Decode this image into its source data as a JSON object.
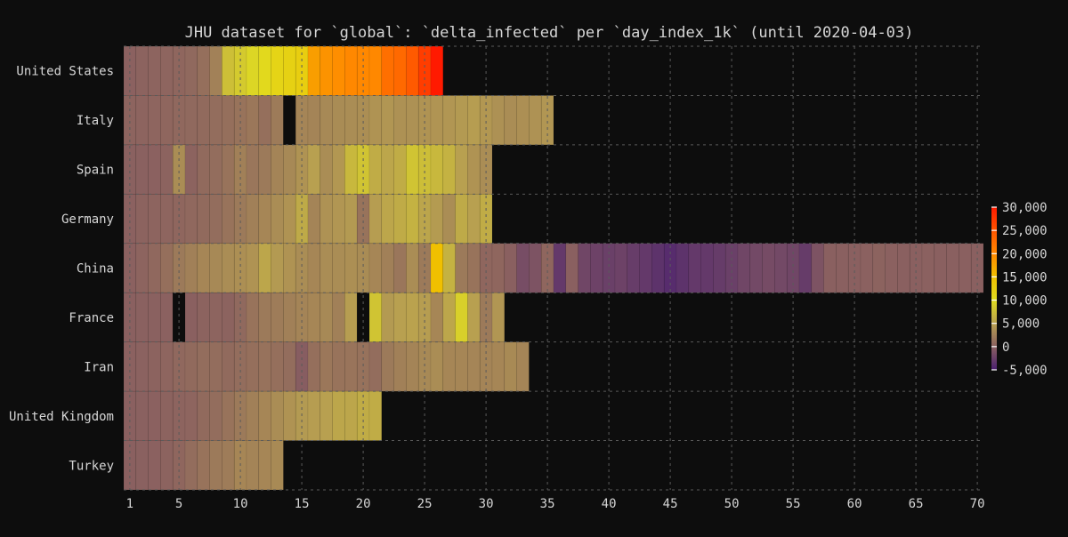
{
  "chart_data": {
    "type": "heatmap",
    "title": "JHU dataset for `global`: `delta_infected` per `day_index_1k` (until 2020-04-03)",
    "xlabel": "",
    "ylabel": "",
    "x_ticks": [
      1,
      5,
      10,
      15,
      20,
      25,
      30,
      35,
      40,
      45,
      50,
      55,
      60,
      65,
      70
    ],
    "xlim": [
      0.5,
      70.5
    ],
    "grid": true,
    "colorbar": {
      "min": -5000,
      "max": 30000,
      "ticks": [
        30000,
        25000,
        20000,
        15000,
        10000,
        5000,
        0,
        -5000
      ],
      "tick_labels": [
        "30,000",
        "25,000",
        "20,000",
        "15,000",
        "10,000",
        "5,000",
        "0",
        "-5,000"
      ],
      "stops": [
        {
          "value": -5000,
          "color": "#4a1f70"
        },
        {
          "value": 0,
          "color": "#8a6060"
        },
        {
          "value": 5000,
          "color": "#b8a050"
        },
        {
          "value": 10000,
          "color": "#e0dc20"
        },
        {
          "value": 15000,
          "color": "#f0c000"
        },
        {
          "value": 20000,
          "color": "#ff8800"
        },
        {
          "value": 25000,
          "color": "#ff5500"
        },
        {
          "value": 30000,
          "color": "#ff1a00"
        }
      ]
    },
    "missing_color": "#0d0d0d",
    "rows": [
      {
        "country": "United States",
        "values": [
          100,
          200,
          300,
          400,
          500,
          700,
          1200,
          2600,
          7600,
          8500,
          9500,
          10500,
          11500,
          12000,
          12500,
          18000,
          19000,
          19500,
          20000,
          20000,
          20000,
          22500,
          23000,
          24500,
          27000,
          30000
        ]
      },
      {
        "country": "Italy",
        "values": [
          300,
          300,
          400,
          500,
          600,
          700,
          800,
          1000,
          1200,
          1500,
          1800,
          1200,
          2100,
          null,
          2900,
          2800,
          3200,
          3400,
          3500,
          3600,
          4000,
          4200,
          3800,
          3800,
          4000,
          4100,
          4200,
          4500,
          4800,
          4300,
          3800,
          3500,
          3700,
          3900,
          4200
        ]
      },
      {
        "country": "Spain",
        "values": [
          50,
          50,
          100,
          200,
          3500,
          200,
          800,
          1000,
          1500,
          2500,
          1700,
          2000,
          2800,
          3200,
          4000,
          5000,
          3500,
          4300,
          7000,
          8000,
          6000,
          5500,
          6000,
          8000,
          7500,
          7000,
          6500,
          5000,
          4000,
          3500
        ]
      },
      {
        "country": "Germany",
        "values": [
          100,
          200,
          300,
          400,
          500,
          600,
          800,
          1000,
          1500,
          2000,
          2500,
          3000,
          3500,
          4000,
          5800,
          2800,
          3900,
          4200,
          4500,
          1500,
          4800,
          5500,
          5900,
          6500,
          5400,
          4600,
          3500,
          5800,
          5000,
          6000
        ]
      },
      {
        "country": "China",
        "values": [
          100,
          300,
          600,
          1200,
          2000,
          2500,
          3000,
          3200,
          3500,
          3700,
          4000,
          5500,
          4500,
          4000,
          3500,
          3000,
          3500,
          3500,
          3700,
          3400,
          3000,
          2500,
          1700,
          3500,
          2000,
          15000,
          6500,
          2000,
          1500,
          500,
          500,
          0,
          -1500,
          -1000,
          500,
          -3000,
          0,
          -2000,
          -2300,
          -2500,
          -2300,
          -2700,
          -3000,
          -3500,
          -4000,
          -3500,
          -3000,
          -3000,
          -2800,
          -2500,
          -2000,
          -1800,
          -1600,
          -1800,
          -2000,
          -2800,
          -1000,
          0,
          0,
          0,
          100,
          200,
          100,
          0,
          0,
          100,
          0,
          0,
          0,
          0
        ]
      },
      {
        "country": "France",
        "values": [
          0,
          50,
          50,
          100,
          null,
          0,
          200,
          300,
          200,
          700,
          1500,
          2000,
          2200,
          2500,
          2800,
          3000,
          3200,
          2500,
          4800,
          null,
          8000,
          4500,
          5000,
          5200,
          4800,
          3000,
          5500,
          9000,
          5000,
          2000,
          4200
        ]
      },
      {
        "country": "Iran",
        "values": [
          100,
          150,
          200,
          400,
          600,
          800,
          1000,
          1000,
          800,
          1000,
          1200,
          1400,
          1200,
          1000,
          -200,
          1200,
          1800,
          1500,
          1600,
          1400,
          1000,
          2000,
          2500,
          2800,
          3200,
          3500,
          3000,
          3000,
          2900,
          2800,
          3000,
          3300,
          2900
        ]
      },
      {
        "country": "United Kingdom",
        "values": [
          0,
          50,
          100,
          200,
          300,
          400,
          800,
          1000,
          1500,
          2000,
          2500,
          3000,
          3500,
          4000,
          4500,
          4800,
          5000,
          5500,
          5500,
          6000,
          6000
        ]
      },
      {
        "country": "Turkey",
        "values": [
          0,
          50,
          100,
          200,
          500,
          1000,
          1500,
          2000,
          2200,
          3000,
          2800,
          3000,
          3300
        ]
      }
    ]
  }
}
